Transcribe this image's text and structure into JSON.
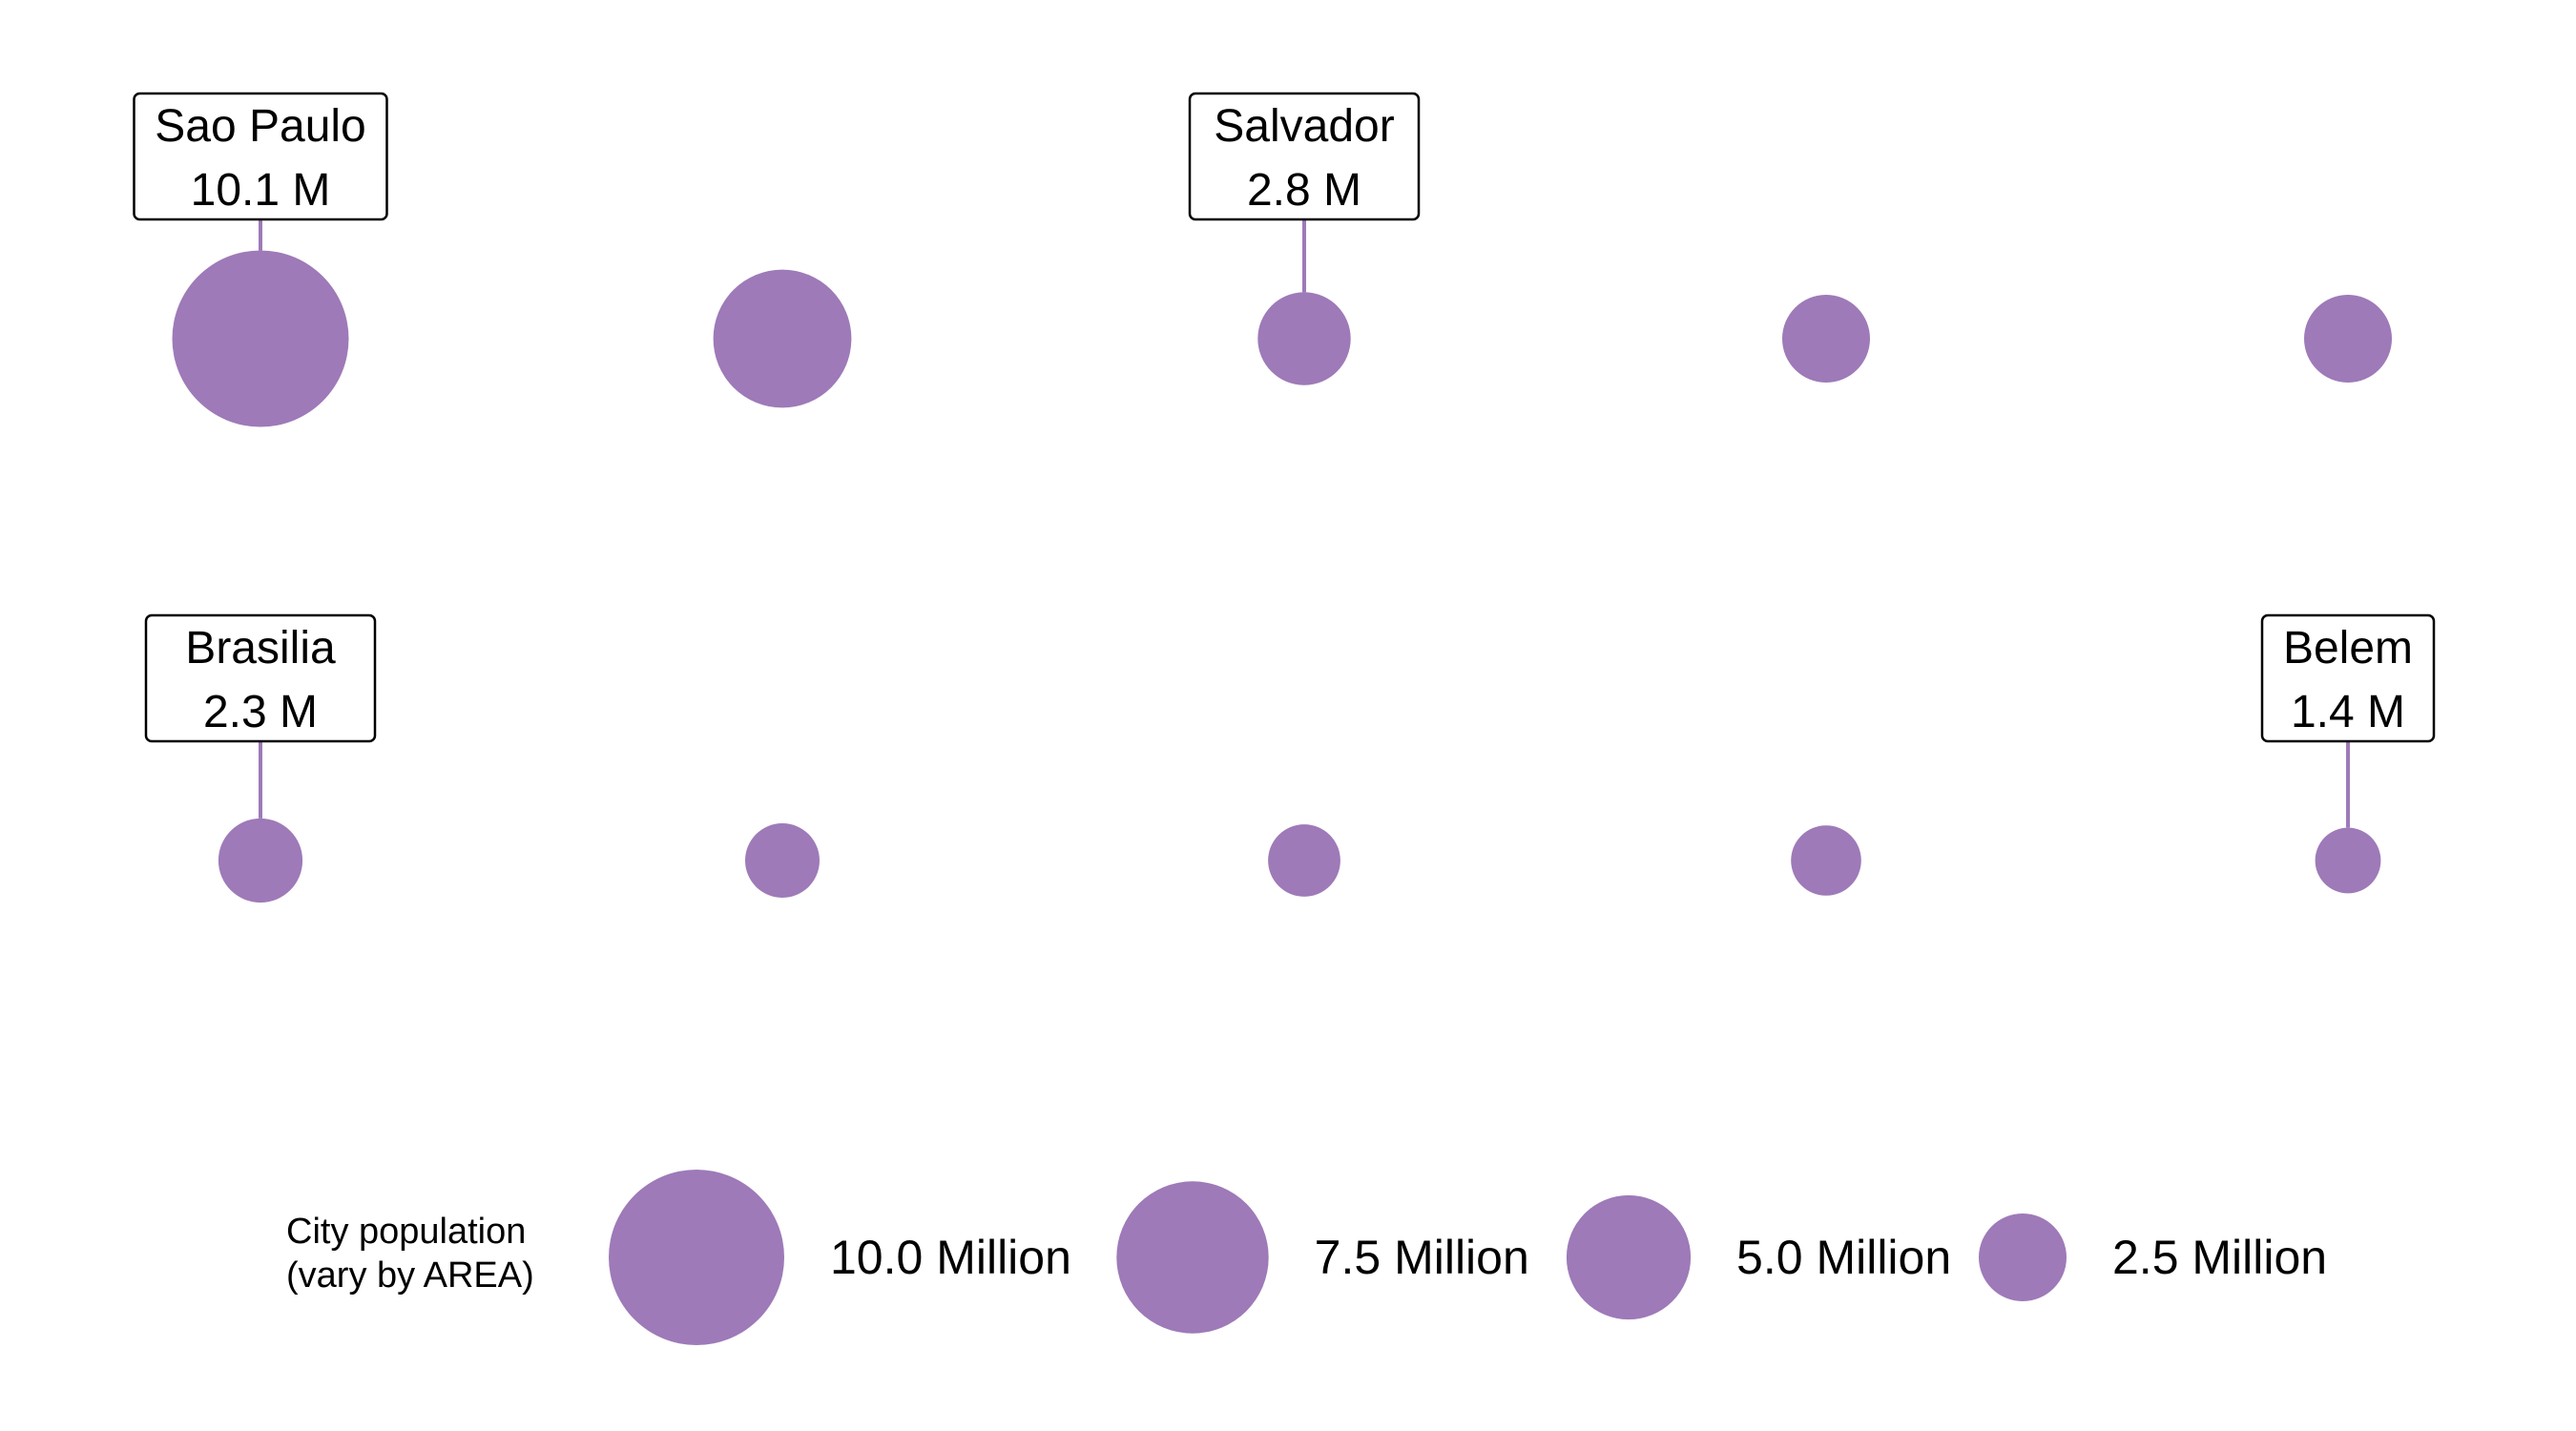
{
  "chart_data": {
    "type": "scatter",
    "encoding": "circle area proportional to population",
    "color": "#9e7ab8",
    "unit": "M",
    "cities": [
      {
        "name": "Sao Paulo",
        "population": 10.1,
        "label": "10.1 M",
        "row": 0,
        "col": 0,
        "labeled": true
      },
      {
        "name": "",
        "population": 6.2,
        "row": 0,
        "col": 1,
        "labeled": false
      },
      {
        "name": "Salvador",
        "population": 2.8,
        "label": "2.8 M",
        "row": 0,
        "col": 2,
        "labeled": true
      },
      {
        "name": "",
        "population": 2.5,
        "row": 0,
        "col": 3,
        "labeled": false
      },
      {
        "name": "",
        "population": 2.5,
        "row": 0,
        "col": 4,
        "labeled": false
      },
      {
        "name": "Brasilia",
        "population": 2.3,
        "label": "2.3 M",
        "row": 1,
        "col": 0,
        "labeled": true
      },
      {
        "name": "",
        "population": 1.8,
        "row": 1,
        "col": 1,
        "labeled": false
      },
      {
        "name": "",
        "population": 1.7,
        "row": 1,
        "col": 2,
        "labeled": false
      },
      {
        "name": "",
        "population": 1.6,
        "row": 1,
        "col": 3,
        "labeled": false
      },
      {
        "name": "Belem",
        "population": 1.4,
        "label": "1.4 M",
        "row": 1,
        "col": 4,
        "labeled": true
      }
    ],
    "legend": {
      "title_lines": [
        "City population",
        "(vary by AREA)"
      ],
      "entries": [
        {
          "value": 10.0,
          "label": "10.0 Million"
        },
        {
          "value": 7.5,
          "label": "7.5 Million"
        },
        {
          "value": 5.0,
          "label": "5.0 Million"
        },
        {
          "value": 2.5,
          "label": "2.5 Million"
        }
      ]
    }
  }
}
